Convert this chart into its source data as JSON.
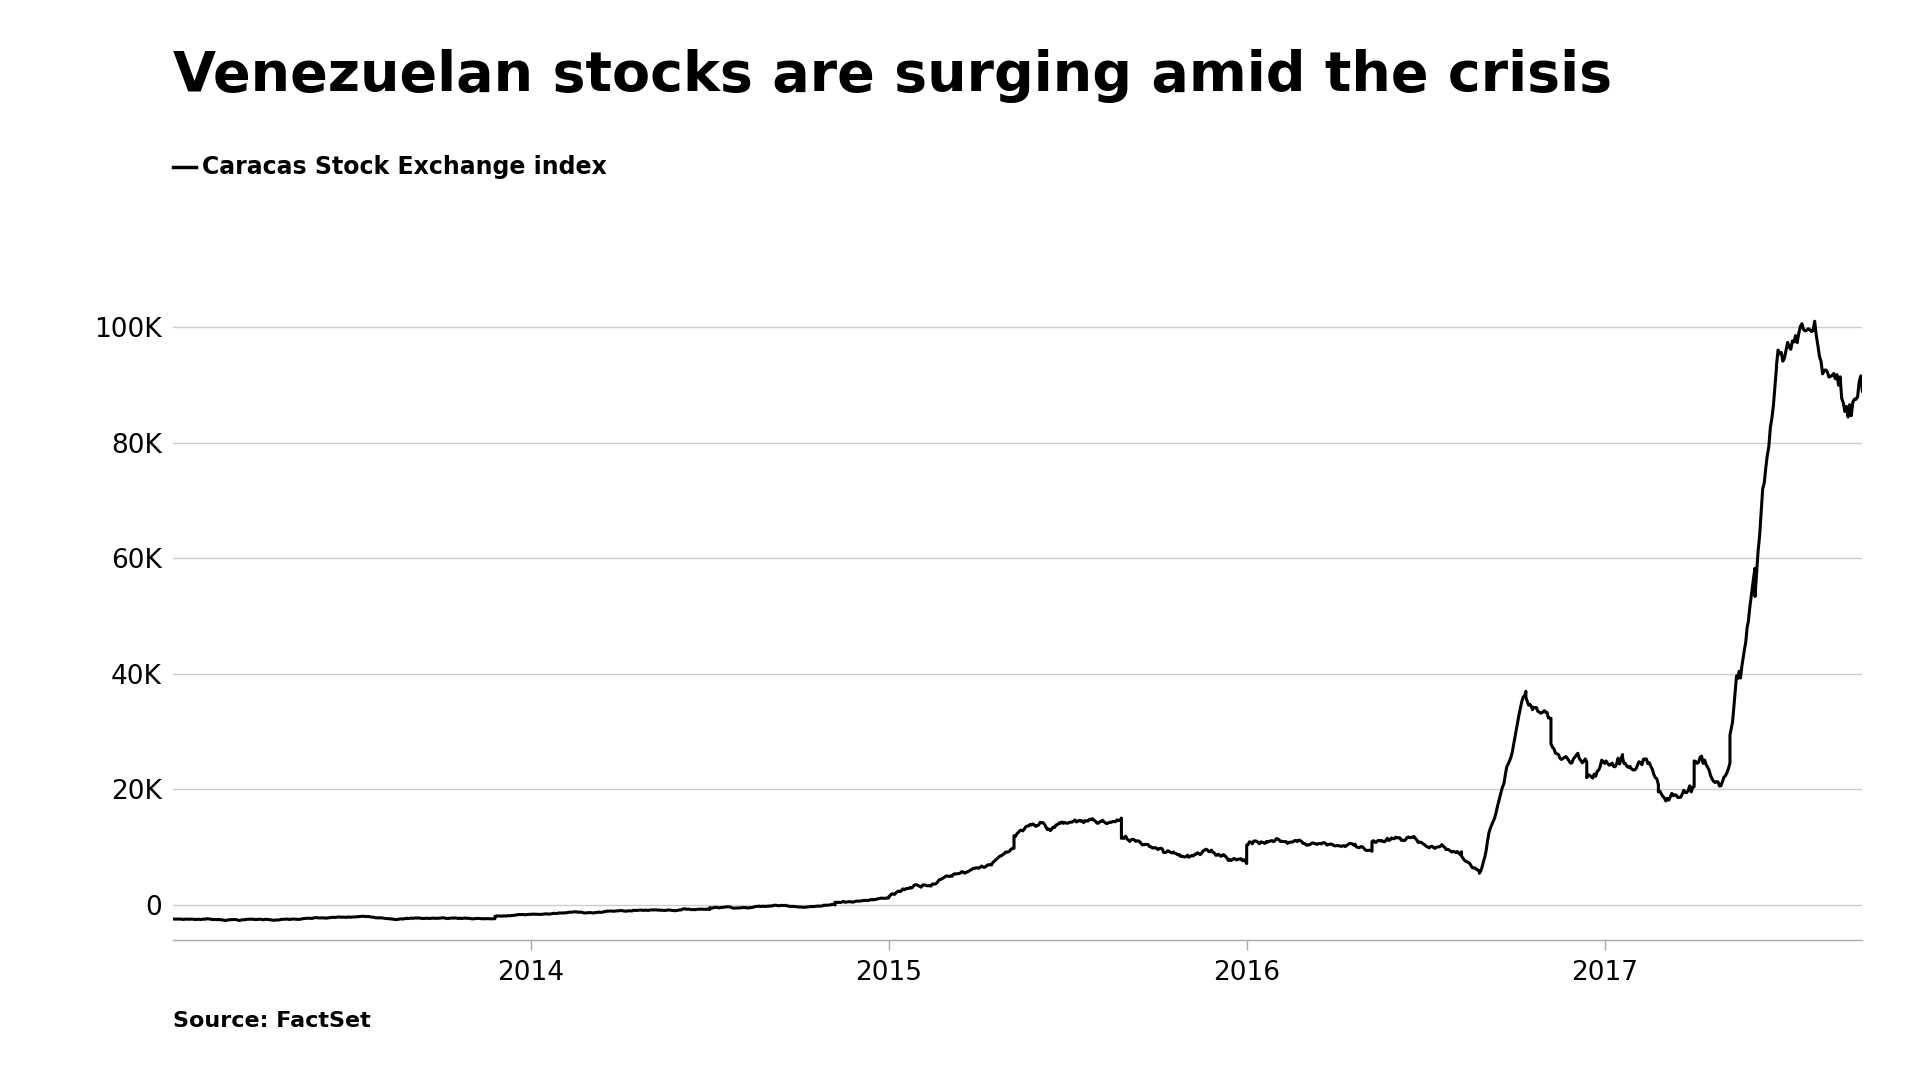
{
  "title": "Venezuelan stocks are surging amid the crisis",
  "subtitle_text": "Caracas Stock Exchange index",
  "source": "Source: FactSet",
  "line_color": "#000000",
  "background_color": "#ffffff",
  "grid_color": "#cccccc",
  "title_fontsize": 40,
  "subtitle_fontsize": 17,
  "source_fontsize": 16,
  "tick_fontsize": 19,
  "yticks": [
    0,
    20000,
    40000,
    60000,
    80000,
    100000
  ],
  "ytick_labels": [
    "0",
    "20K",
    "40K",
    "60K",
    "80K",
    "100K"
  ],
  "ylim": [
    -6000,
    108000
  ],
  "xlim_start": 2013.0,
  "xlim_end": 2017.72,
  "xtick_positions": [
    2014.0,
    2015.0,
    2016.0,
    2017.0
  ],
  "xtick_labels": [
    "2014",
    "2015",
    "2016",
    "2017"
  ]
}
